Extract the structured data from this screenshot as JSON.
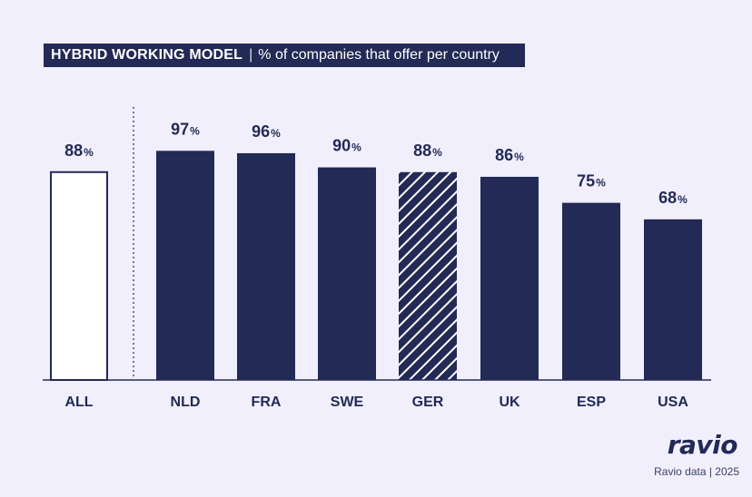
{
  "header": {
    "title_main": "HYBRID WORKING MODEL",
    "separator": "|",
    "title_sub": "% of companies that offer per country"
  },
  "chart_data": {
    "type": "bar",
    "title": "HYBRID WORKING MODEL",
    "subtitle": "% of companies that offer per country",
    "xlabel": "",
    "ylabel": "",
    "ylim": [
      0,
      100
    ],
    "unit": "%",
    "grid": false,
    "categories": [
      "ALL",
      "NLD",
      "FRA",
      "SWE",
      "GER",
      "UK",
      "ESP",
      "USA"
    ],
    "values": [
      88,
      97,
      96,
      90,
      88,
      86,
      75,
      68
    ],
    "styles": [
      "outline",
      "solid",
      "solid",
      "solid",
      "hatched",
      "solid",
      "solid",
      "solid"
    ]
  },
  "colors": {
    "bar": "#222a55",
    "background": "#f1effb",
    "outline_fill": "#ffffff"
  },
  "footer": {
    "logo": "ravio",
    "source": "Ravio data | 2025"
  }
}
